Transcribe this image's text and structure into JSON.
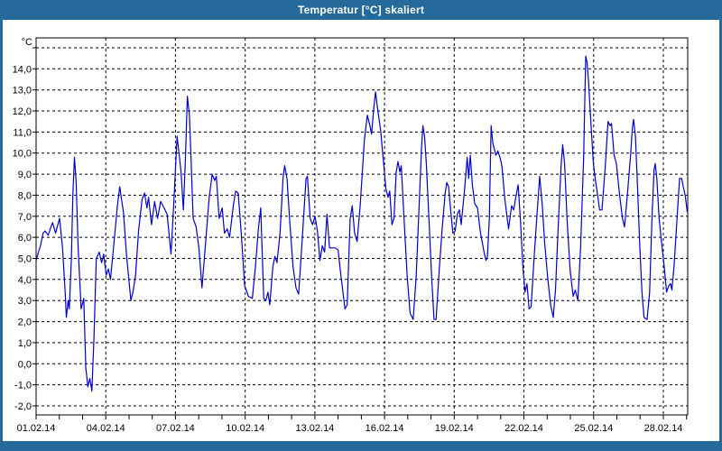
{
  "window": {
    "title": "Temperatur [°C] skaliert",
    "title_bar_color": "#26699B",
    "content_background": "#FFFFFF"
  },
  "chart_data": {
    "type": "line",
    "title": "Temperatur [°C] skaliert",
    "ylabel": "°C",
    "y_unit_label": "°C",
    "grid": "dashed-black",
    "legend_position": "none",
    "line_color": "#0000CC",
    "frame_color": "#000000",
    "y_axis_top": 15.47,
    "y_axis_bottom": -2.43,
    "y_grid_min": -2,
    "y_grid_max": 15,
    "y_grid_step": 1,
    "y_tick_values": [
      14,
      13,
      12,
      11,
      10,
      9,
      8,
      7,
      6,
      5,
      4,
      3,
      2,
      1,
      0,
      -1,
      -2
    ],
    "y_tick_labels": [
      "14,0",
      "13,0",
      "12,0",
      "11,0",
      "10,0",
      "9,0",
      "8,0",
      "7,0",
      "6,0",
      "5,0",
      "4,0",
      "3,0",
      "2,0",
      "1,0",
      "0,0",
      "-1,0",
      "-2,0"
    ],
    "x_total_days": 28.05,
    "x_minor_tick_step_days": 1,
    "x_label_days": [
      0,
      3,
      6,
      9,
      12,
      15,
      18,
      21,
      24,
      27
    ],
    "x_tick_labels": [
      "01.02.14",
      "04.02.14",
      "07.02.14",
      "10.02.14",
      "13.02.14",
      "16.02.14",
      "19.02.14",
      "22.02.14",
      "25.02.14",
      "28.02.14"
    ],
    "series": [
      {
        "name": "Temperatur",
        "color": "#0000CC",
        "points_day_temp": [
          [
            0.0,
            4.9
          ],
          [
            0.1,
            5.3
          ],
          [
            0.19,
            5.6
          ],
          [
            0.3,
            6.2
          ],
          [
            0.39,
            6.3
          ],
          [
            0.52,
            6.1
          ],
          [
            0.64,
            6.5
          ],
          [
            0.71,
            6.7
          ],
          [
            0.84,
            6.2
          ],
          [
            1.01,
            6.9
          ],
          [
            1.14,
            5.5
          ],
          [
            1.25,
            3.4
          ],
          [
            1.3,
            2.2
          ],
          [
            1.38,
            3.0
          ],
          [
            1.43,
            2.6
          ],
          [
            1.52,
            5.0
          ],
          [
            1.58,
            8.0
          ],
          [
            1.65,
            9.8
          ],
          [
            1.72,
            8.7
          ],
          [
            1.81,
            5.5
          ],
          [
            1.94,
            2.6
          ],
          [
            2.05,
            3.1
          ],
          [
            2.14,
            -0.2
          ],
          [
            2.23,
            -1.1
          ],
          [
            2.31,
            -0.7
          ],
          [
            2.4,
            -1.3
          ],
          [
            2.49,
            1.2
          ],
          [
            2.59,
            5.0
          ],
          [
            2.72,
            5.3
          ],
          [
            2.82,
            4.8
          ],
          [
            2.91,
            5.2
          ],
          [
            3.02,
            4.2
          ],
          [
            3.11,
            4.5
          ],
          [
            3.2,
            4.0
          ],
          [
            3.34,
            5.6
          ],
          [
            3.5,
            7.5
          ],
          [
            3.6,
            8.4
          ],
          [
            3.69,
            7.7
          ],
          [
            3.76,
            7.2
          ],
          [
            3.89,
            5.2
          ],
          [
            4.08,
            3.0
          ],
          [
            4.17,
            3.4
          ],
          [
            4.28,
            4.2
          ],
          [
            4.41,
            6.3
          ],
          [
            4.56,
            7.8
          ],
          [
            4.67,
            8.1
          ],
          [
            4.77,
            7.4
          ],
          [
            4.84,
            7.9
          ],
          [
            4.97,
            6.6
          ],
          [
            5.1,
            7.7
          ],
          [
            5.23,
            6.9
          ],
          [
            5.36,
            7.7
          ],
          [
            5.51,
            7.4
          ],
          [
            5.64,
            7.1
          ],
          [
            5.81,
            5.2
          ],
          [
            5.94,
            7.9
          ],
          [
            6.07,
            10.8
          ],
          [
            6.16,
            9.9
          ],
          [
            6.24,
            9.1
          ],
          [
            6.34,
            7.3
          ],
          [
            6.43,
            9.8
          ],
          [
            6.51,
            12.7
          ],
          [
            6.6,
            11.8
          ],
          [
            6.68,
            9.5
          ],
          [
            6.76,
            6.9
          ],
          [
            6.89,
            6.5
          ],
          [
            7.01,
            5.5
          ],
          [
            7.14,
            3.6
          ],
          [
            7.3,
            5.8
          ],
          [
            7.45,
            7.9
          ],
          [
            7.58,
            9.0
          ],
          [
            7.69,
            8.7
          ],
          [
            7.76,
            8.9
          ],
          [
            7.88,
            6.9
          ],
          [
            8.01,
            7.4
          ],
          [
            8.11,
            6.2
          ],
          [
            8.23,
            6.4
          ],
          [
            8.33,
            6.0
          ],
          [
            8.49,
            7.5
          ],
          [
            8.59,
            8.2
          ],
          [
            8.7,
            8.1
          ],
          [
            8.83,
            6.2
          ],
          [
            8.98,
            3.7
          ],
          [
            9.14,
            3.2
          ],
          [
            9.31,
            3.1
          ],
          [
            9.44,
            4.6
          ],
          [
            9.57,
            6.4
          ],
          [
            9.67,
            7.4
          ],
          [
            9.8,
            3.1
          ],
          [
            9.89,
            3.0
          ],
          [
            9.98,
            3.4
          ],
          [
            10.06,
            2.8
          ],
          [
            10.19,
            4.6
          ],
          [
            10.28,
            5.1
          ],
          [
            10.37,
            4.8
          ],
          [
            10.5,
            6.2
          ],
          [
            10.63,
            8.8
          ],
          [
            10.7,
            9.4
          ],
          [
            10.8,
            8.8
          ],
          [
            10.93,
            6.6
          ],
          [
            11.06,
            4.6
          ],
          [
            11.19,
            3.6
          ],
          [
            11.3,
            3.3
          ],
          [
            11.45,
            5.8
          ],
          [
            11.62,
            8.8
          ],
          [
            11.68,
            8.9
          ],
          [
            11.8,
            6.9
          ],
          [
            11.9,
            6.6
          ],
          [
            12.01,
            7.0
          ],
          [
            12.11,
            6.3
          ],
          [
            12.22,
            4.9
          ],
          [
            12.32,
            5.6
          ],
          [
            12.42,
            5.3
          ],
          [
            12.52,
            7.1
          ],
          [
            12.63,
            5.5
          ],
          [
            12.74,
            5.5
          ],
          [
            12.87,
            5.5
          ],
          [
            13.0,
            5.4
          ],
          [
            13.13,
            4.1
          ],
          [
            13.3,
            2.6
          ],
          [
            13.39,
            2.8
          ],
          [
            13.52,
            6.9
          ],
          [
            13.61,
            7.5
          ],
          [
            13.71,
            6.2
          ],
          [
            13.82,
            5.8
          ],
          [
            13.95,
            7.5
          ],
          [
            14.13,
            10.6
          ],
          [
            14.26,
            11.8
          ],
          [
            14.37,
            11.3
          ],
          [
            14.44,
            10.9
          ],
          [
            14.54,
            12.2
          ],
          [
            14.61,
            12.9
          ],
          [
            14.7,
            12.1
          ],
          [
            14.83,
            11.1
          ],
          [
            14.96,
            9.5
          ],
          [
            15.06,
            8.3
          ],
          [
            15.15,
            7.9
          ],
          [
            15.22,
            8.2
          ],
          [
            15.32,
            6.6
          ],
          [
            15.41,
            6.9
          ],
          [
            15.5,
            9.1
          ],
          [
            15.58,
            9.6
          ],
          [
            15.66,
            9.1
          ],
          [
            15.72,
            9.4
          ],
          [
            15.84,
            6.9
          ],
          [
            15.97,
            4.2
          ],
          [
            16.1,
            2.4
          ],
          [
            16.23,
            2.1
          ],
          [
            16.36,
            4.1
          ],
          [
            16.49,
            7.5
          ],
          [
            16.59,
            10.2
          ],
          [
            16.65,
            11.3
          ],
          [
            16.72,
            10.8
          ],
          [
            16.8,
            9.5
          ],
          [
            16.93,
            6.4
          ],
          [
            17.03,
            4.1
          ],
          [
            17.13,
            2.1
          ],
          [
            17.22,
            2.1
          ],
          [
            17.35,
            4.4
          ],
          [
            17.48,
            6.4
          ],
          [
            17.61,
            8.1
          ],
          [
            17.68,
            8.6
          ],
          [
            17.76,
            8.4
          ],
          [
            17.83,
            7.5
          ],
          [
            17.94,
            6.2
          ],
          [
            18.04,
            6.3
          ],
          [
            18.13,
            7.1
          ],
          [
            18.22,
            7.3
          ],
          [
            18.3,
            6.6
          ],
          [
            18.43,
            8.1
          ],
          [
            18.56,
            9.8
          ],
          [
            18.62,
            8.8
          ],
          [
            18.69,
            9.9
          ],
          [
            18.78,
            8.5
          ],
          [
            18.88,
            7.6
          ],
          [
            19.0,
            7.4
          ],
          [
            19.13,
            6.2
          ],
          [
            19.3,
            5.2
          ],
          [
            19.37,
            4.9
          ],
          [
            19.43,
            5.1
          ],
          [
            19.51,
            6.9
          ],
          [
            19.59,
            11.3
          ],
          [
            19.66,
            10.5
          ],
          [
            19.79,
            9.9
          ],
          [
            19.88,
            10.1
          ],
          [
            19.97,
            9.8
          ],
          [
            20.05,
            9.4
          ],
          [
            20.18,
            7.8
          ],
          [
            20.34,
            6.4
          ],
          [
            20.47,
            7.5
          ],
          [
            20.56,
            7.3
          ],
          [
            20.65,
            7.9
          ],
          [
            20.75,
            8.5
          ],
          [
            20.85,
            6.8
          ],
          [
            20.96,
            4.5
          ],
          [
            21.05,
            3.4
          ],
          [
            21.13,
            3.8
          ],
          [
            21.22,
            2.6
          ],
          [
            21.31,
            2.7
          ],
          [
            21.44,
            5.1
          ],
          [
            21.57,
            7.2
          ],
          [
            21.68,
            8.9
          ],
          [
            21.79,
            7.5
          ],
          [
            21.89,
            5.8
          ],
          [
            22.02,
            4.1
          ],
          [
            22.15,
            2.8
          ],
          [
            22.26,
            2.2
          ],
          [
            22.36,
            3.5
          ],
          [
            22.47,
            6.4
          ],
          [
            22.6,
            9.4
          ],
          [
            22.67,
            10.4
          ],
          [
            22.75,
            9.5
          ],
          [
            22.86,
            6.8
          ],
          [
            22.99,
            4.4
          ],
          [
            23.12,
            3.2
          ],
          [
            23.21,
            3.5
          ],
          [
            23.32,
            3.0
          ],
          [
            23.44,
            5.5
          ],
          [
            23.57,
            9.8
          ],
          [
            23.66,
            14.6
          ],
          [
            23.72,
            14.3
          ],
          [
            23.78,
            13.4
          ],
          [
            23.9,
            11.1
          ],
          [
            23.99,
            9.5
          ],
          [
            24.09,
            8.6
          ],
          [
            24.16,
            8.1
          ],
          [
            24.26,
            7.3
          ],
          [
            24.36,
            7.3
          ],
          [
            24.49,
            9.2
          ],
          [
            24.62,
            11.5
          ],
          [
            24.71,
            11.3
          ],
          [
            24.77,
            11.4
          ],
          [
            24.88,
            9.9
          ],
          [
            24.98,
            9.5
          ],
          [
            25.11,
            8.1
          ],
          [
            25.24,
            6.9
          ],
          [
            25.33,
            6.5
          ],
          [
            25.46,
            8.1
          ],
          [
            25.59,
            9.9
          ],
          [
            25.67,
            11.2
          ],
          [
            25.72,
            11.6
          ],
          [
            25.8,
            10.8
          ],
          [
            25.89,
            8.4
          ],
          [
            25.98,
            5.8
          ],
          [
            26.08,
            3.4
          ],
          [
            26.17,
            2.2
          ],
          [
            26.3,
            2.1
          ],
          [
            26.41,
            3.4
          ],
          [
            26.51,
            6.9
          ],
          [
            26.6,
            9.2
          ],
          [
            26.65,
            9.5
          ],
          [
            26.72,
            8.8
          ],
          [
            26.82,
            6.9
          ],
          [
            26.92,
            5.8
          ],
          [
            27.04,
            4.6
          ],
          [
            27.14,
            3.4
          ],
          [
            27.23,
            3.7
          ],
          [
            27.31,
            3.8
          ],
          [
            27.37,
            3.5
          ],
          [
            27.46,
            4.6
          ],
          [
            27.59,
            6.9
          ],
          [
            27.7,
            8.8
          ],
          [
            27.79,
            8.8
          ],
          [
            27.86,
            8.4
          ],
          [
            27.94,
            8.0
          ],
          [
            28.03,
            7.2
          ]
        ]
      }
    ]
  }
}
